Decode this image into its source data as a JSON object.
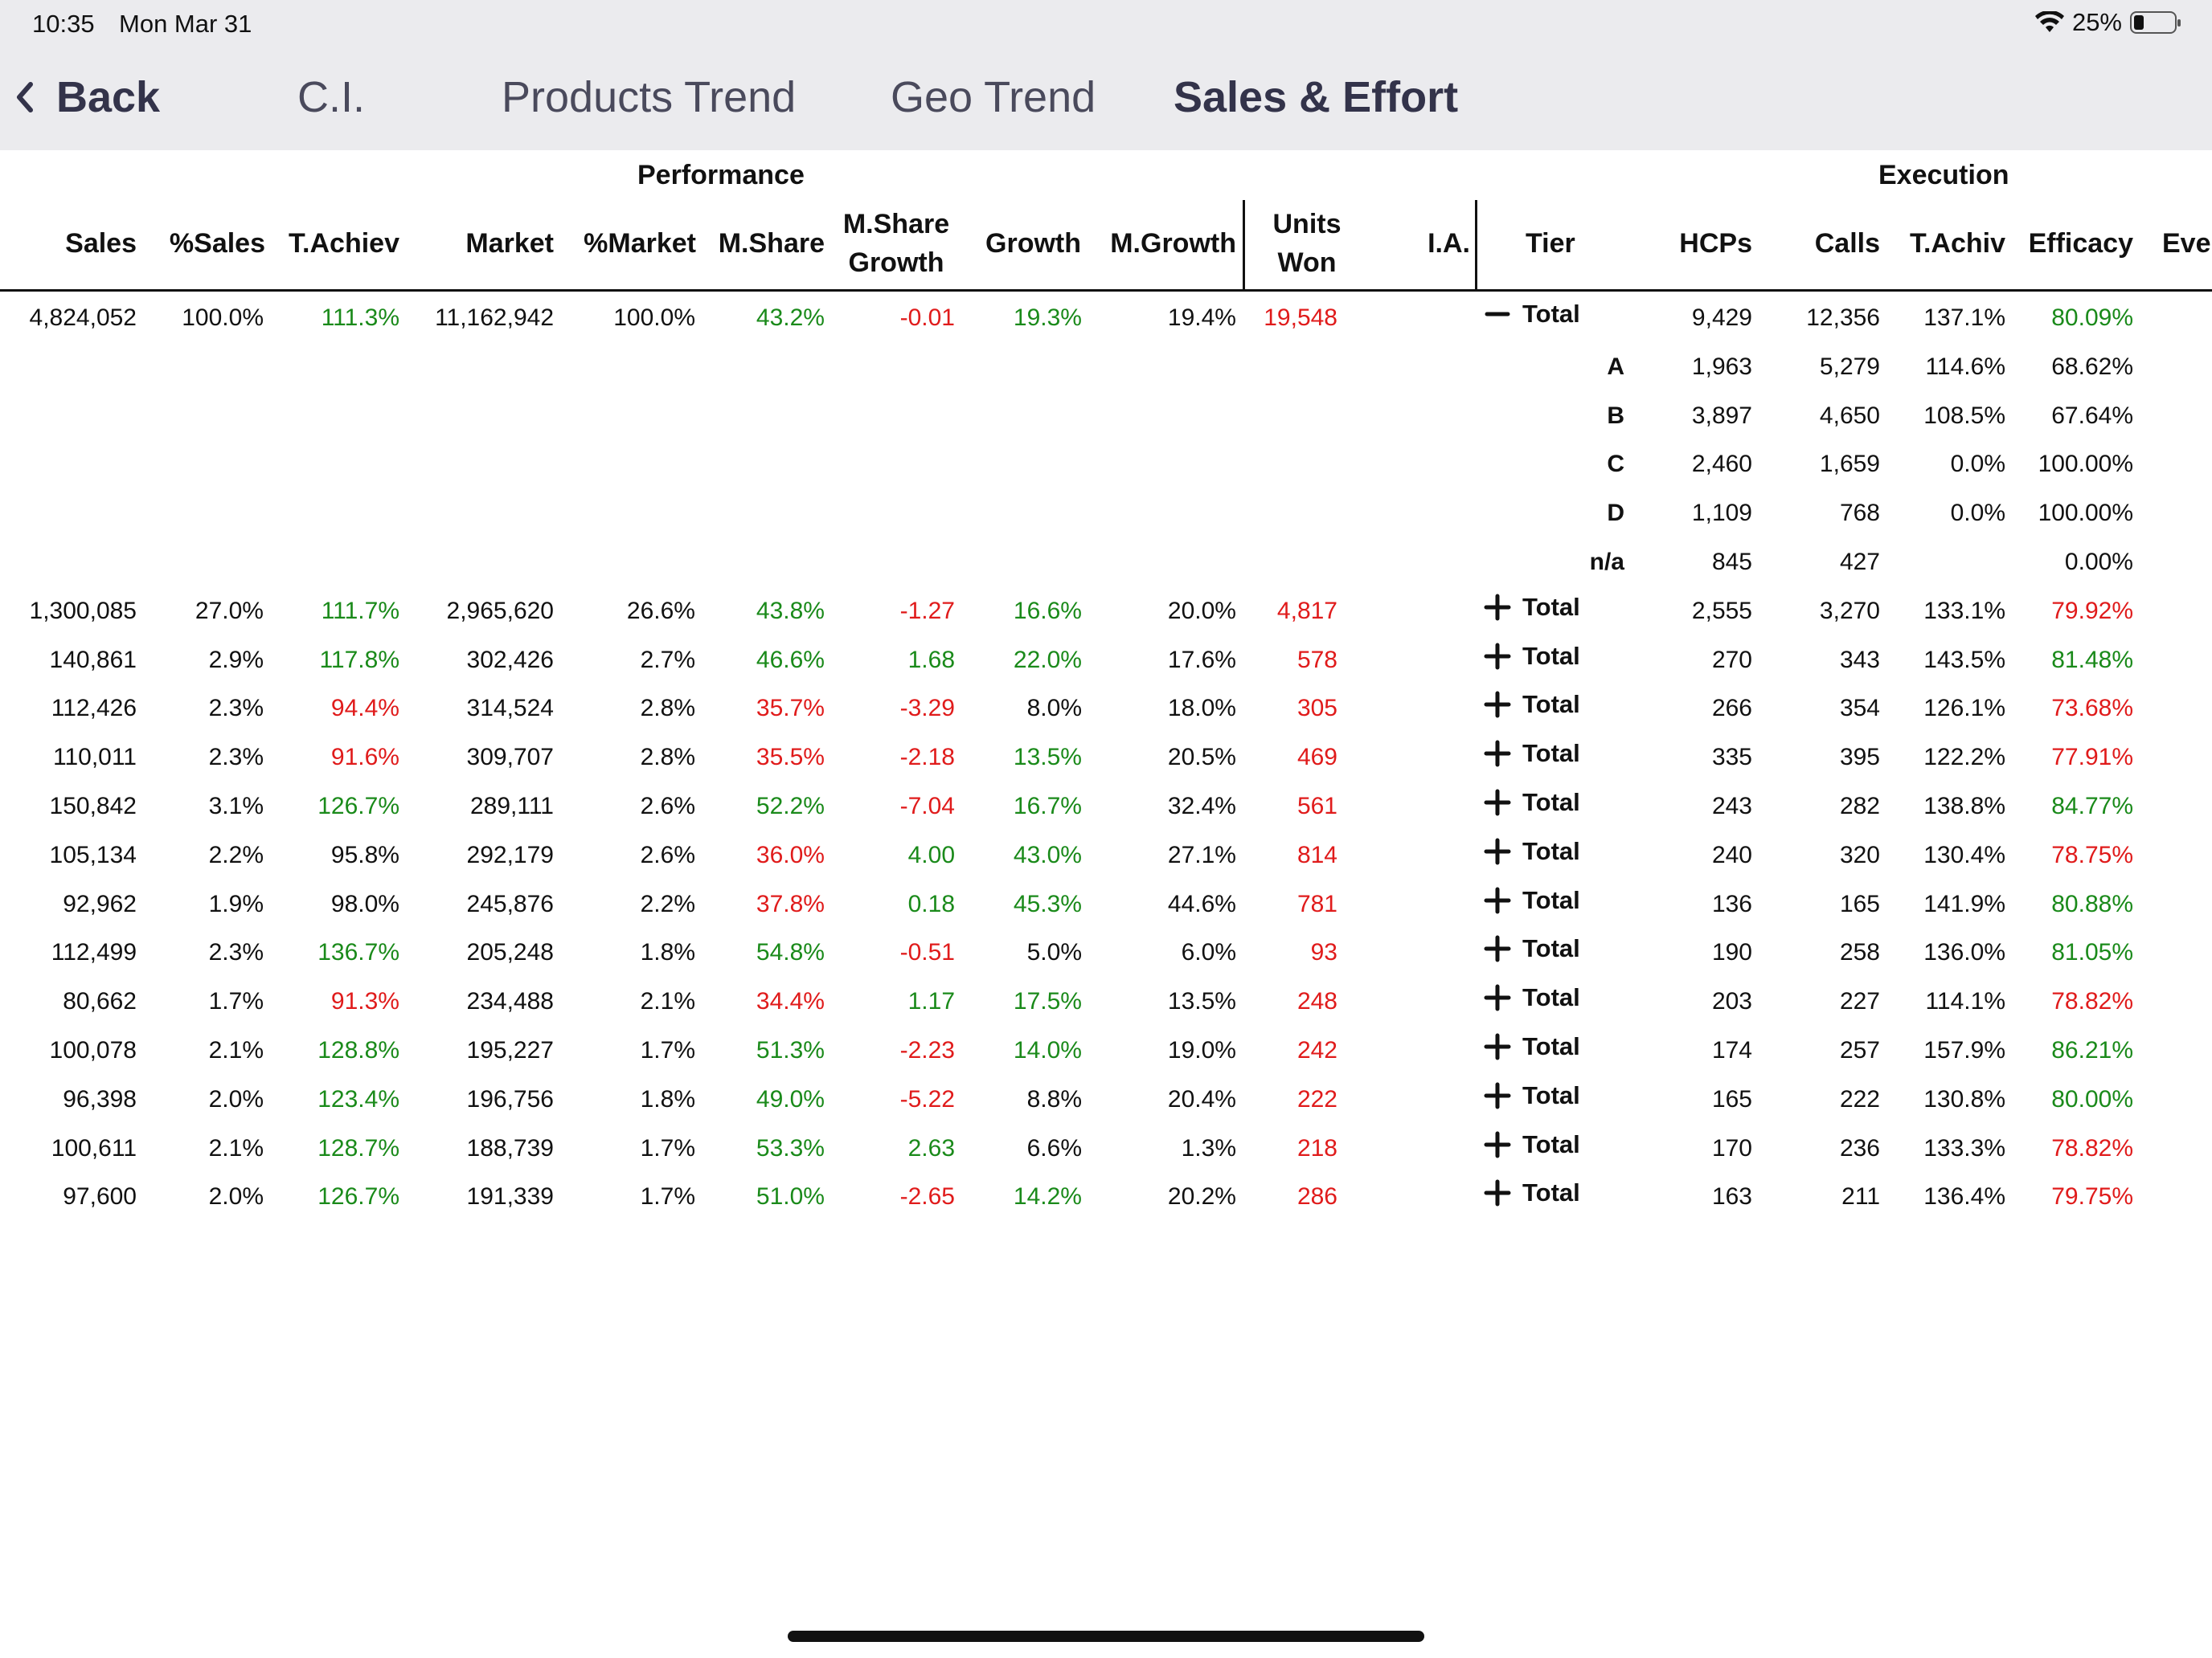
{
  "status": {
    "time": "10:35",
    "date": "Mon Mar 31",
    "battery": "25%",
    "battery_level": 0.25
  },
  "nav": {
    "back": "Back",
    "tabs": [
      {
        "label": "C.I."
      },
      {
        "label": "Products Trend"
      },
      {
        "label": "Geo Trend"
      },
      {
        "label": "Sales & Effort"
      }
    ],
    "active_tab": "Sales & Effort"
  },
  "groups": {
    "performance": "Performance",
    "execution": "Execution"
  },
  "headers": {
    "sales": "Sales",
    "pct_sales": "%Sales",
    "t_achiev": "T.Achiev",
    "market": "Market",
    "pct_market": "%Market",
    "m_share": "M.Share",
    "m_share_growth_1": "M.Share",
    "m_share_growth_2": "Growth",
    "growth": "Growth",
    "m_growth": "M.Growth",
    "units_won_1": "Units",
    "units_won_2": "Won",
    "ia": "I.A.",
    "tier": "Tier",
    "hcps": "HCPs",
    "calls": "Calls",
    "t_achiv": "T.Achiv",
    "efficacy": "Efficacy",
    "eve": "Eve"
  },
  "colors": {
    "positive": "#1a8a1a",
    "negative": "#e01b1b",
    "neutral": "#111111",
    "nav_bg": "#ebebee"
  },
  "rows": [
    {
      "sales": "4,824,052",
      "pct_sales": "100.0%",
      "t_achiev": "111.3%",
      "t_achiev_c": "green",
      "market": "11,162,942",
      "pct_market": "100.0%",
      "m_share": "43.2%",
      "m_share_c": "green",
      "msg": "-0.01",
      "msg_c": "red",
      "growth": "19.3%",
      "growth_c": "green",
      "m_growth": "19.4%",
      "units": "19,548",
      "toggle": "−",
      "tier": "Total",
      "hcps": "9,429",
      "calls": "12,356",
      "t_achiv": "137.1%",
      "efficacy": "80.09%",
      "efficacy_c": "green"
    },
    {
      "tier_sub": "A",
      "hcps": "1,963",
      "calls": "5,279",
      "t_achiv": "114.6%",
      "efficacy": "68.62%",
      "efficacy_c": "black"
    },
    {
      "tier_sub": "B",
      "hcps": "3,897",
      "calls": "4,650",
      "t_achiv": "108.5%",
      "efficacy": "67.64%",
      "efficacy_c": "black"
    },
    {
      "tier_sub": "C",
      "hcps": "2,460",
      "calls": "1,659",
      "t_achiv": "0.0%",
      "efficacy": "100.00%",
      "efficacy_c": "black"
    },
    {
      "tier_sub": "D",
      "hcps": "1,109",
      "calls": "768",
      "t_achiv": "0.0%",
      "efficacy": "100.00%",
      "efficacy_c": "black"
    },
    {
      "tier_sub": "n/a",
      "hcps": "845",
      "calls": "427",
      "t_achiv": "",
      "efficacy": "0.00%",
      "efficacy_c": "black"
    },
    {
      "sales": "1,300,085",
      "pct_sales": "27.0%",
      "t_achiev": "111.7%",
      "t_achiev_c": "green",
      "market": "2,965,620",
      "pct_market": "26.6%",
      "m_share": "43.8%",
      "m_share_c": "green",
      "msg": "-1.27",
      "msg_c": "red",
      "growth": "16.6%",
      "growth_c": "green",
      "m_growth": "20.0%",
      "units": "4,817",
      "toggle": "+",
      "tier": "Total",
      "hcps": "2,555",
      "calls": "3,270",
      "t_achiv": "133.1%",
      "efficacy": "79.92%",
      "efficacy_c": "red"
    },
    {
      "sales": "140,861",
      "pct_sales": "2.9%",
      "t_achiev": "117.8%",
      "t_achiev_c": "green",
      "market": "302,426",
      "pct_market": "2.7%",
      "m_share": "46.6%",
      "m_share_c": "green",
      "msg": "1.68",
      "msg_c": "green",
      "growth": "22.0%",
      "growth_c": "green",
      "m_growth": "17.6%",
      "units": "578",
      "toggle": "+",
      "tier": "Total",
      "hcps": "270",
      "calls": "343",
      "t_achiv": "143.5%",
      "efficacy": "81.48%",
      "efficacy_c": "green"
    },
    {
      "sales": "112,426",
      "pct_sales": "2.3%",
      "t_achiev": "94.4%",
      "t_achiev_c": "red",
      "market": "314,524",
      "pct_market": "2.8%",
      "m_share": "35.7%",
      "m_share_c": "red",
      "msg": "-3.29",
      "msg_c": "red",
      "growth": "8.0%",
      "growth_c": "black",
      "m_growth": "18.0%",
      "units": "305",
      "toggle": "+",
      "tier": "Total",
      "hcps": "266",
      "calls": "354",
      "t_achiv": "126.1%",
      "efficacy": "73.68%",
      "efficacy_c": "red"
    },
    {
      "sales": "110,011",
      "pct_sales": "2.3%",
      "t_achiev": "91.6%",
      "t_achiev_c": "red",
      "market": "309,707",
      "pct_market": "2.8%",
      "m_share": "35.5%",
      "m_share_c": "red",
      "msg": "-2.18",
      "msg_c": "red",
      "growth": "13.5%",
      "growth_c": "green",
      "m_growth": "20.5%",
      "units": "469",
      "toggle": "+",
      "tier": "Total",
      "hcps": "335",
      "calls": "395",
      "t_achiv": "122.2%",
      "efficacy": "77.91%",
      "efficacy_c": "red"
    },
    {
      "sales": "150,842",
      "pct_sales": "3.1%",
      "t_achiev": "126.7%",
      "t_achiev_c": "green",
      "market": "289,111",
      "pct_market": "2.6%",
      "m_share": "52.2%",
      "m_share_c": "green",
      "msg": "-7.04",
      "msg_c": "red",
      "growth": "16.7%",
      "growth_c": "green",
      "m_growth": "32.4%",
      "units": "561",
      "toggle": "+",
      "tier": "Total",
      "hcps": "243",
      "calls": "282",
      "t_achiv": "138.8%",
      "efficacy": "84.77%",
      "efficacy_c": "green"
    },
    {
      "sales": "105,134",
      "pct_sales": "2.2%",
      "t_achiev": "95.8%",
      "t_achiev_c": "black",
      "market": "292,179",
      "pct_market": "2.6%",
      "m_share": "36.0%",
      "m_share_c": "red",
      "msg": "4.00",
      "msg_c": "green",
      "growth": "43.0%",
      "growth_c": "green",
      "m_growth": "27.1%",
      "units": "814",
      "toggle": "+",
      "tier": "Total",
      "hcps": "240",
      "calls": "320",
      "t_achiv": "130.4%",
      "efficacy": "78.75%",
      "efficacy_c": "red"
    },
    {
      "sales": "92,962",
      "pct_sales": "1.9%",
      "t_achiev": "98.0%",
      "t_achiev_c": "black",
      "market": "245,876",
      "pct_market": "2.2%",
      "m_share": "37.8%",
      "m_share_c": "red",
      "msg": "0.18",
      "msg_c": "green",
      "growth": "45.3%",
      "growth_c": "green",
      "m_growth": "44.6%",
      "units": "781",
      "toggle": "+",
      "tier": "Total",
      "hcps": "136",
      "calls": "165",
      "t_achiv": "141.9%",
      "efficacy": "80.88%",
      "efficacy_c": "green"
    },
    {
      "sales": "112,499",
      "pct_sales": "2.3%",
      "t_achiev": "136.7%",
      "t_achiev_c": "green",
      "market": "205,248",
      "pct_market": "1.8%",
      "m_share": "54.8%",
      "m_share_c": "green",
      "msg": "-0.51",
      "msg_c": "red",
      "growth": "5.0%",
      "growth_c": "black",
      "m_growth": "6.0%",
      "units": "93",
      "toggle": "+",
      "tier": "Total",
      "hcps": "190",
      "calls": "258",
      "t_achiv": "136.0%",
      "efficacy": "81.05%",
      "efficacy_c": "green"
    },
    {
      "sales": "80,662",
      "pct_sales": "1.7%",
      "t_achiev": "91.3%",
      "t_achiev_c": "red",
      "market": "234,488",
      "pct_market": "2.1%",
      "m_share": "34.4%",
      "m_share_c": "red",
      "msg": "1.17",
      "msg_c": "green",
      "growth": "17.5%",
      "growth_c": "green",
      "m_growth": "13.5%",
      "units": "248",
      "toggle": "+",
      "tier": "Total",
      "hcps": "203",
      "calls": "227",
      "t_achiv": "114.1%",
      "efficacy": "78.82%",
      "efficacy_c": "red"
    },
    {
      "sales": "100,078",
      "pct_sales": "2.1%",
      "t_achiev": "128.8%",
      "t_achiev_c": "green",
      "market": "195,227",
      "pct_market": "1.7%",
      "m_share": "51.3%",
      "m_share_c": "green",
      "msg": "-2.23",
      "msg_c": "red",
      "growth": "14.0%",
      "growth_c": "green",
      "m_growth": "19.0%",
      "units": "242",
      "toggle": "+",
      "tier": "Total",
      "hcps": "174",
      "calls": "257",
      "t_achiv": "157.9%",
      "efficacy": "86.21%",
      "efficacy_c": "green"
    },
    {
      "sales": "96,398",
      "pct_sales": "2.0%",
      "t_achiev": "123.4%",
      "t_achiev_c": "green",
      "market": "196,756",
      "pct_market": "1.8%",
      "m_share": "49.0%",
      "m_share_c": "green",
      "msg": "-5.22",
      "msg_c": "red",
      "growth": "8.8%",
      "growth_c": "black",
      "m_growth": "20.4%",
      "units": "222",
      "toggle": "+",
      "tier": "Total",
      "hcps": "165",
      "calls": "222",
      "t_achiv": "130.8%",
      "efficacy": "80.00%",
      "efficacy_c": "green"
    },
    {
      "sales": "100,611",
      "pct_sales": "2.1%",
      "t_achiev": "128.7%",
      "t_achiev_c": "green",
      "market": "188,739",
      "pct_market": "1.7%",
      "m_share": "53.3%",
      "m_share_c": "green",
      "msg": "2.63",
      "msg_c": "green",
      "growth": "6.6%",
      "growth_c": "black",
      "m_growth": "1.3%",
      "units": "218",
      "toggle": "+",
      "tier": "Total",
      "hcps": "170",
      "calls": "236",
      "t_achiv": "133.3%",
      "efficacy": "78.82%",
      "efficacy_c": "red"
    },
    {
      "sales": "97,600",
      "pct_sales": "2.0%",
      "t_achiev": "126.7%",
      "t_achiev_c": "green",
      "market": "191,339",
      "pct_market": "1.7%",
      "m_share": "51.0%",
      "m_share_c": "green",
      "msg": "-2.65",
      "msg_c": "red",
      "growth": "14.2%",
      "growth_c": "green",
      "m_growth": "20.2%",
      "units": "286",
      "toggle": "+",
      "tier": "Total",
      "hcps": "163",
      "calls": "211",
      "t_achiv": "136.4%",
      "efficacy": "79.75%",
      "efficacy_c": "red"
    }
  ]
}
